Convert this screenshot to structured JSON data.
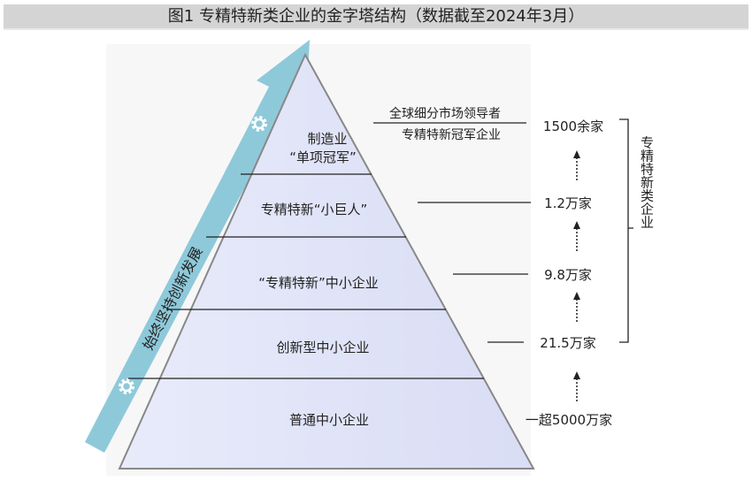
{
  "title": "图1  专精特新类企业的金字塔结构（数据截至2024年3月）",
  "arrow_label": "始终坚持创新发展",
  "levels": [
    {
      "line1": "制造业",
      "line2": "“单项冠军”",
      "count": "1500余家"
    },
    {
      "label": "专精特新“小巨人”",
      "count": "1.2万家"
    },
    {
      "label": "“专精特新”中小企业",
      "count": "9.8万家"
    },
    {
      "label": "创新型中小企业",
      "count": "21.5万家"
    },
    {
      "label": "普通中小企业",
      "count": "一超5000万家"
    }
  ],
  "top_note": {
    "above": "全球细分市场领导者",
    "below": "专精特新冠军企业"
  },
  "bracket_label": "专精特新类企业",
  "icons": [
    "gear-icon",
    "gear-icon",
    "arrow-up-icon"
  ],
  "colors": {
    "pyramid_fill": "#dfe3f7",
    "arrow": "#8ec9da",
    "title_bg": "#d4d4d4"
  }
}
